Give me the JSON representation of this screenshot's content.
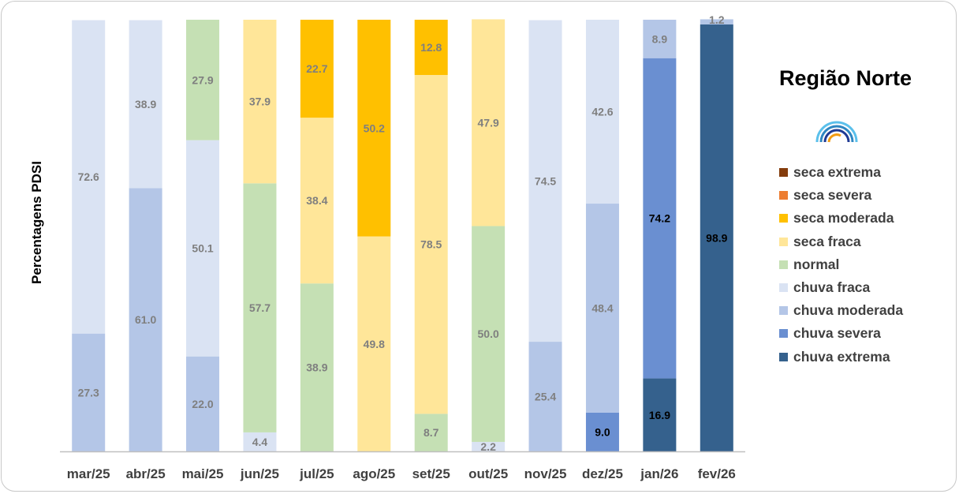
{
  "chart_data": {
    "type": "bar",
    "stacked": true,
    "title": "Região Norte",
    "ylabel": "Percentagens PDSI",
    "xlabel": "",
    "ylim": [
      0,
      100
    ],
    "grid": false,
    "legend_position": "right",
    "categories": [
      "mar/25",
      "abr/25",
      "mai/25",
      "jun/25",
      "jul/25",
      "ago/25",
      "set/25",
      "out/25",
      "nov/25",
      "dez/25",
      "jan/26",
      "fev/26"
    ],
    "series": [
      {
        "name": "chuva extrema",
        "color": "#35618d",
        "label_color": "#000000",
        "values": [
          0,
          0,
          0,
          0,
          0,
          0,
          0,
          0,
          0,
          0,
          16.9,
          98.9
        ]
      },
      {
        "name": "chuva severa",
        "color": "#6a8fd1",
        "label_color": "#000000",
        "values": [
          0,
          0,
          0,
          0,
          0,
          0,
          0,
          0,
          0,
          9.0,
          74.2,
          0
        ]
      },
      {
        "name": "chuva moderada",
        "color": "#b4c6e7",
        "label_color": "#7f7f7f",
        "values": [
          27.3,
          61.0,
          22.0,
          0,
          0,
          0,
          0,
          0,
          25.4,
          48.4,
          8.9,
          1.2
        ]
      },
      {
        "name": "chuva fraca",
        "color": "#dae3f3",
        "label_color": "#7f7f7f",
        "values": [
          72.6,
          38.9,
          50.1,
          4.4,
          0,
          0,
          0,
          2.2,
          74.5,
          42.6,
          0,
          0
        ]
      },
      {
        "name": "normal",
        "color": "#c5e0b4",
        "label_color": "#7f7f7f",
        "values": [
          0,
          0,
          27.9,
          57.7,
          38.9,
          0,
          8.7,
          50.0,
          0,
          0,
          0,
          0
        ]
      },
      {
        "name": "seca fraca",
        "color": "#ffe699",
        "label_color": "#7f7f7f",
        "values": [
          0,
          0,
          0,
          37.9,
          38.4,
          49.8,
          78.5,
          47.9,
          0,
          0,
          0,
          0
        ]
      },
      {
        "name": "seca moderada",
        "color": "#ffc000",
        "label_color": "#7f7f7f",
        "values": [
          0,
          0,
          0,
          0,
          22.7,
          50.2,
          12.8,
          0,
          0,
          0,
          0,
          0
        ]
      },
      {
        "name": "seca severa",
        "color": "#ed7d31",
        "label_color": "#7f7f7f",
        "values": [
          0,
          0,
          0,
          0,
          0,
          0,
          0,
          0,
          0,
          0,
          0,
          0
        ]
      },
      {
        "name": "seca extrema",
        "color": "#843c0c",
        "label_color": "#7f7f7f",
        "values": [
          0,
          0,
          0,
          0,
          0,
          0,
          0,
          0,
          0,
          0,
          0,
          0
        ]
      }
    ],
    "legend_order": [
      "seca extrema",
      "seca severa",
      "seca moderada",
      "seca fraca",
      "normal",
      "chuva fraca",
      "chuva moderada",
      "chuva severa",
      "chuva extrema"
    ]
  }
}
